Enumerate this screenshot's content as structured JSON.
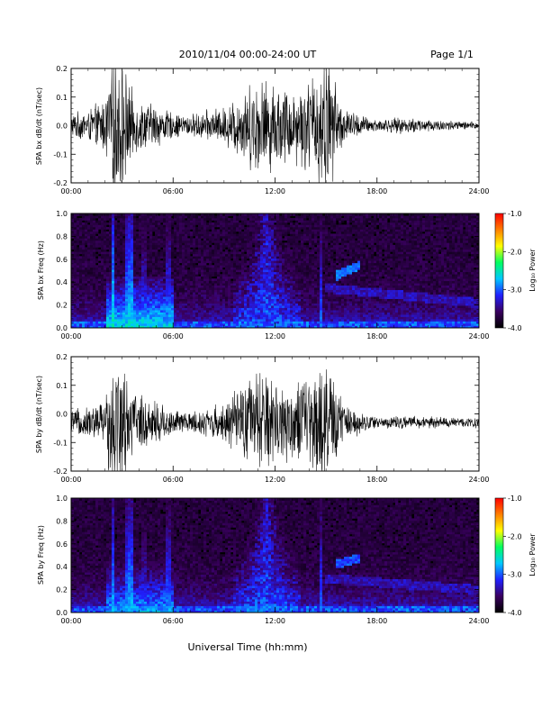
{
  "header": {
    "title": "2010/11/04  00:00-24:00 UT",
    "page_label": "Page 1/1"
  },
  "footer": {
    "xlabel": "Universal Time (hh:mm)"
  },
  "colorbar": {
    "label": "Log₁₀ Power",
    "ticks": [
      "-1.0",
      "-2.0",
      "-3.0",
      "-4.0"
    ],
    "tick_values": [
      -1.0,
      -2.0,
      -3.0,
      -4.0
    ],
    "range": [
      -4.0,
      -1.0
    ],
    "colors": [
      "#000000",
      "#3a0060",
      "#2020ff",
      "#00c8ff",
      "#00ff60",
      "#ffff00",
      "#ff8000",
      "#ff0000"
    ]
  },
  "chart_data": [
    {
      "id": "bx-dbdt",
      "type": "line",
      "ylabel": "SPA bx dB/dt (nT/sec)",
      "xlim": [
        0,
        24
      ],
      "ylim": [
        -0.2,
        0.2
      ],
      "x_tick_labels": [
        "00:00",
        "06:00",
        "12:00",
        "18:00",
        "24:00"
      ],
      "x_tick_values": [
        0,
        6,
        12,
        18,
        24
      ],
      "y_tick_labels": [
        "0.2",
        "0.1",
        "0.0",
        "-0.1",
        "-0.2"
      ],
      "y_tick_values": [
        0.2,
        0.1,
        0.0,
        -0.1,
        -0.2
      ],
      "series": [
        {
          "offset": 0.0,
          "envelope": {
            "hours": [
              0,
              1,
              2,
              2.5,
              3,
              3.5,
              4,
              5,
              6,
              7,
              8,
              9,
              10,
              11,
              12,
              13,
              14,
              15,
              16,
              17,
              18,
              19,
              20,
              21,
              22,
              23,
              24
            ],
            "amplitude": [
              0.04,
              0.05,
              0.09,
              0.25,
              0.22,
              0.12,
              0.08,
              0.07,
              0.04,
              0.035,
              0.05,
              0.06,
              0.11,
              0.16,
              0.14,
              0.12,
              0.15,
              0.25,
              0.06,
              0.035,
              0.02,
              0.025,
              0.025,
              0.022,
              0.018,
              0.015,
              0.012
            ]
          }
        }
      ]
    },
    {
      "id": "bx-spectrogram",
      "type": "heatmap",
      "ylabel": "SPA bx Freq (Hz)",
      "xlim": [
        0,
        24
      ],
      "ylim": [
        0.0,
        1.0
      ],
      "x_tick_labels": [
        "00:00",
        "06:00",
        "12:00",
        "18:00",
        "24:00"
      ],
      "x_tick_values": [
        0,
        6,
        12,
        18,
        24
      ],
      "y_tick_labels": [
        "1.0",
        "0.8",
        "0.6",
        "0.4",
        "0.2",
        "0.0"
      ],
      "y_tick_values": [
        1.0,
        0.8,
        0.6,
        0.4,
        0.2,
        0.0
      ],
      "z_range": [
        -4.0,
        -1.0
      ],
      "features": {
        "bursts": [
          {
            "hour": 2.5,
            "level": -2.4
          },
          {
            "hour": 3.3,
            "level": -2.6
          },
          {
            "hour": 3.5,
            "level": -2.5
          },
          {
            "hour": 4.3,
            "level": -2.9
          },
          {
            "hour": 5.7,
            "level": -2.8
          },
          {
            "hour": 11.2,
            "level": -3.0
          },
          {
            "hour": 14.7,
            "level": -2.8
          }
        ],
        "broadband": {
          "start": 9.5,
          "end": 13.5,
          "level": -2.8
        },
        "dawn_band": {
          "start": 2.0,
          "end": 6.0,
          "level": -2.4
        },
        "pc1_bands": [
          {
            "start": 15.0,
            "end": 24.0,
            "f_start": 0.35,
            "f_end": 0.22,
            "level": -3.2
          },
          {
            "start": 15.5,
            "end": 17.0,
            "f_start": 0.45,
            "f_end": 0.55,
            "level": -2.8
          }
        ]
      }
    },
    {
      "id": "by-dbdt",
      "type": "line",
      "ylabel": "SPA by dB/dt (nT/sec)",
      "xlim": [
        0,
        24
      ],
      "ylim": [
        -0.2,
        0.2
      ],
      "x_tick_labels": [
        "00:00",
        "06:00",
        "12:00",
        "18:00",
        "24:00"
      ],
      "x_tick_values": [
        0,
        6,
        12,
        18,
        24
      ],
      "y_tick_labels": [
        "0.2",
        "0.1",
        "0.0",
        "-0.1",
        "-0.2"
      ],
      "y_tick_values": [
        0.2,
        0.1,
        0.0,
        -0.1,
        -0.2
      ],
      "series": [
        {
          "offset": -0.03,
          "envelope": {
            "hours": [
              0,
              1,
              2,
              2.5,
              3,
              3.5,
              4,
              5,
              6,
              7,
              8,
              9,
              10,
              11,
              12,
              13,
              14,
              15,
              16,
              17,
              18,
              19,
              20,
              21,
              22,
              23,
              24
            ],
            "amplitude": [
              0.04,
              0.05,
              0.08,
              0.25,
              0.2,
              0.12,
              0.09,
              0.08,
              0.04,
              0.035,
              0.05,
              0.06,
              0.12,
              0.17,
              0.15,
              0.12,
              0.16,
              0.2,
              0.07,
              0.035,
              0.02,
              0.02,
              0.02,
              0.02,
              0.018,
              0.015,
              0.02
            ]
          }
        }
      ]
    },
    {
      "id": "by-spectrogram",
      "type": "heatmap",
      "ylabel": "SPA by Freq (Hz)",
      "xlim": [
        0,
        24
      ],
      "ylim": [
        0.0,
        1.0
      ],
      "x_tick_labels": [
        "00:00",
        "06:00",
        "12:00",
        "18:00",
        "24:00"
      ],
      "x_tick_values": [
        0,
        6,
        12,
        18,
        24
      ],
      "y_tick_labels": [
        "1.0",
        "0.8",
        "0.6",
        "0.4",
        "0.2",
        "0.0"
      ],
      "y_tick_values": [
        1.0,
        0.8,
        0.6,
        0.4,
        0.2,
        0.0
      ],
      "z_range": [
        -4.0,
        -1.0
      ],
      "features": {
        "bursts": [
          {
            "hour": 2.5,
            "level": -2.6
          },
          {
            "hour": 3.3,
            "level": -2.7
          },
          {
            "hour": 3.5,
            "level": -2.6
          },
          {
            "hour": 4.3,
            "level": -3.0
          },
          {
            "hour": 5.7,
            "level": -2.8
          },
          {
            "hour": 11.2,
            "level": -3.0
          },
          {
            "hour": 14.7,
            "level": -2.8
          }
        ],
        "broadband": {
          "start": 9.5,
          "end": 13.5,
          "level": -2.8
        },
        "dawn_band": {
          "start": 2.0,
          "end": 6.0,
          "level": -2.6
        },
        "pc1_bands": [
          {
            "start": 15.0,
            "end": 24.0,
            "f_start": 0.3,
            "f_end": 0.2,
            "level": -3.2
          },
          {
            "start": 15.5,
            "end": 17.0,
            "f_start": 0.42,
            "f_end": 0.48,
            "level": -2.9
          }
        ]
      }
    }
  ]
}
